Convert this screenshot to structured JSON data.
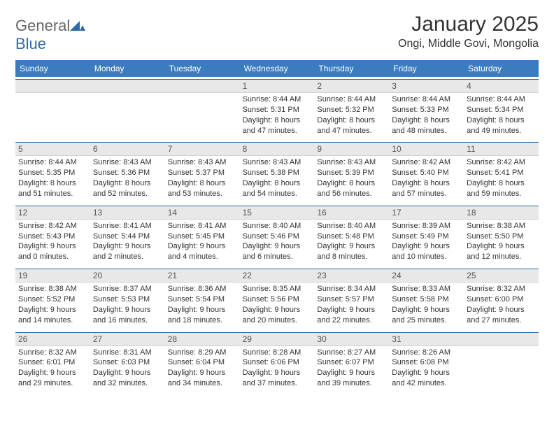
{
  "logo": {
    "text1": "General",
    "text2": "Blue"
  },
  "title": "January 2025",
  "location": "Ongi, Middle Govi, Mongolia",
  "colors": {
    "header_bg": "#3b7bbf",
    "header_text": "#ffffff",
    "daynum_bg": "#e8e8e8",
    "daynum_border_top": "#2f6aa8",
    "body_text": "#333333"
  },
  "day_headers": [
    "Sunday",
    "Monday",
    "Tuesday",
    "Wednesday",
    "Thursday",
    "Friday",
    "Saturday"
  ],
  "leading_blanks": 3,
  "days": [
    {
      "n": 1,
      "sr": "8:44 AM",
      "ss": "5:31 PM",
      "dh": 8,
      "dm": 47
    },
    {
      "n": 2,
      "sr": "8:44 AM",
      "ss": "5:32 PM",
      "dh": 8,
      "dm": 47
    },
    {
      "n": 3,
      "sr": "8:44 AM",
      "ss": "5:33 PM",
      "dh": 8,
      "dm": 48
    },
    {
      "n": 4,
      "sr": "8:44 AM",
      "ss": "5:34 PM",
      "dh": 8,
      "dm": 49
    },
    {
      "n": 5,
      "sr": "8:44 AM",
      "ss": "5:35 PM",
      "dh": 8,
      "dm": 51
    },
    {
      "n": 6,
      "sr": "8:43 AM",
      "ss": "5:36 PM",
      "dh": 8,
      "dm": 52
    },
    {
      "n": 7,
      "sr": "8:43 AM",
      "ss": "5:37 PM",
      "dh": 8,
      "dm": 53
    },
    {
      "n": 8,
      "sr": "8:43 AM",
      "ss": "5:38 PM",
      "dh": 8,
      "dm": 54
    },
    {
      "n": 9,
      "sr": "8:43 AM",
      "ss": "5:39 PM",
      "dh": 8,
      "dm": 56
    },
    {
      "n": 10,
      "sr": "8:42 AM",
      "ss": "5:40 PM",
      "dh": 8,
      "dm": 57
    },
    {
      "n": 11,
      "sr": "8:42 AM",
      "ss": "5:41 PM",
      "dh": 8,
      "dm": 59
    },
    {
      "n": 12,
      "sr": "8:42 AM",
      "ss": "5:43 PM",
      "dh": 9,
      "dm": 0
    },
    {
      "n": 13,
      "sr": "8:41 AM",
      "ss": "5:44 PM",
      "dh": 9,
      "dm": 2
    },
    {
      "n": 14,
      "sr": "8:41 AM",
      "ss": "5:45 PM",
      "dh": 9,
      "dm": 4
    },
    {
      "n": 15,
      "sr": "8:40 AM",
      "ss": "5:46 PM",
      "dh": 9,
      "dm": 6
    },
    {
      "n": 16,
      "sr": "8:40 AM",
      "ss": "5:48 PM",
      "dh": 9,
      "dm": 8
    },
    {
      "n": 17,
      "sr": "8:39 AM",
      "ss": "5:49 PM",
      "dh": 9,
      "dm": 10
    },
    {
      "n": 18,
      "sr": "8:38 AM",
      "ss": "5:50 PM",
      "dh": 9,
      "dm": 12
    },
    {
      "n": 19,
      "sr": "8:38 AM",
      "ss": "5:52 PM",
      "dh": 9,
      "dm": 14
    },
    {
      "n": 20,
      "sr": "8:37 AM",
      "ss": "5:53 PM",
      "dh": 9,
      "dm": 16
    },
    {
      "n": 21,
      "sr": "8:36 AM",
      "ss": "5:54 PM",
      "dh": 9,
      "dm": 18
    },
    {
      "n": 22,
      "sr": "8:35 AM",
      "ss": "5:56 PM",
      "dh": 9,
      "dm": 20
    },
    {
      "n": 23,
      "sr": "8:34 AM",
      "ss": "5:57 PM",
      "dh": 9,
      "dm": 22
    },
    {
      "n": 24,
      "sr": "8:33 AM",
      "ss": "5:58 PM",
      "dh": 9,
      "dm": 25
    },
    {
      "n": 25,
      "sr": "8:32 AM",
      "ss": "6:00 PM",
      "dh": 9,
      "dm": 27
    },
    {
      "n": 26,
      "sr": "8:32 AM",
      "ss": "6:01 PM",
      "dh": 9,
      "dm": 29
    },
    {
      "n": 27,
      "sr": "8:31 AM",
      "ss": "6:03 PM",
      "dh": 9,
      "dm": 32
    },
    {
      "n": 28,
      "sr": "8:29 AM",
      "ss": "6:04 PM",
      "dh": 9,
      "dm": 34
    },
    {
      "n": 29,
      "sr": "8:28 AM",
      "ss": "6:06 PM",
      "dh": 9,
      "dm": 37
    },
    {
      "n": 30,
      "sr": "8:27 AM",
      "ss": "6:07 PM",
      "dh": 9,
      "dm": 39
    },
    {
      "n": 31,
      "sr": "8:26 AM",
      "ss": "6:08 PM",
      "dh": 9,
      "dm": 42
    }
  ],
  "labels": {
    "sunrise": "Sunrise:",
    "sunset": "Sunset:",
    "daylight": "Daylight:",
    "hours_word": "hours",
    "and_word": "and",
    "minutes_word": "minutes."
  }
}
